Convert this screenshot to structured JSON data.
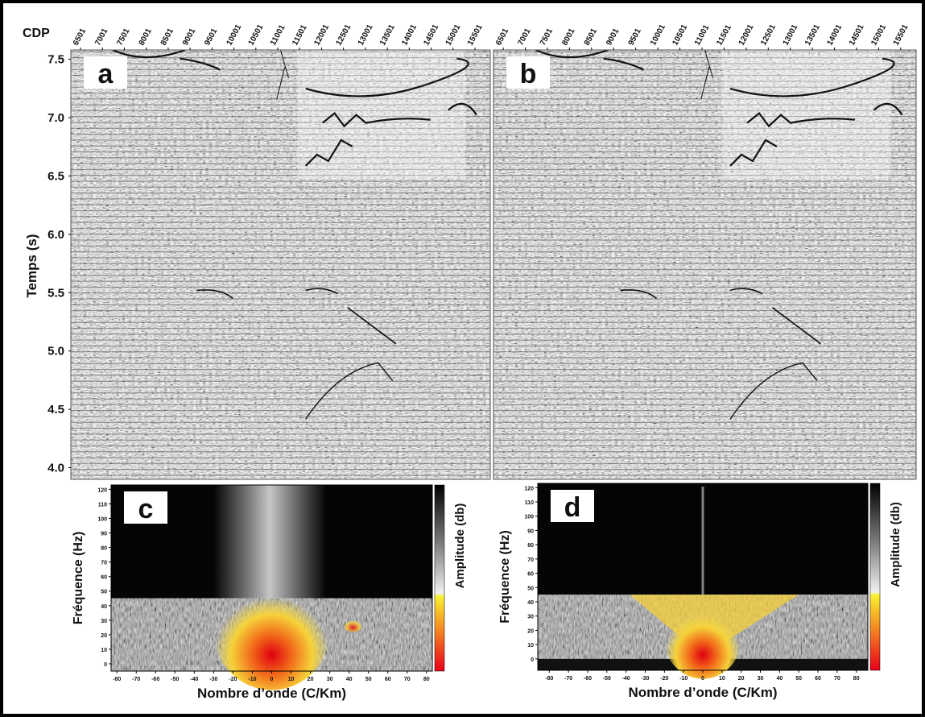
{
  "chart_data": [
    {
      "type": "seismic",
      "panel_label": "a",
      "xlabel": "CDP",
      "ylabel": "Temps (s)",
      "xlim": [
        6280,
        15850
      ],
      "xticks": [
        6501,
        7001,
        7501,
        8001,
        8501,
        9001,
        9501,
        10001,
        10501,
        11001,
        11501,
        12001,
        12501,
        13001,
        13501,
        14001,
        14501,
        15001,
        15501
      ],
      "ylim": [
        3.9,
        7.58
      ],
      "yticks": [
        {
          "value": 4,
          "label": "4.0"
        },
        4.5,
        {
          "value": 5,
          "label": "5.0"
        },
        5.5,
        {
          "value": 6,
          "label": "6.0"
        },
        6.5,
        {
          "value": 7,
          "label": "7.0"
        },
        7.5
      ]
    },
    {
      "type": "seismic",
      "panel_label": "b",
      "xlim": [
        6280,
        15850
      ],
      "xticks": [
        6501,
        7001,
        7501,
        8001,
        8501,
        9001,
        9501,
        10001,
        10501,
        11001,
        11501,
        12001,
        12501,
        13001,
        13501,
        14001,
        14501,
        15001,
        15501
      ],
      "ylim": [
        3.9,
        7.58
      ]
    },
    {
      "type": "spectrum",
      "panel_label": "c",
      "xlabel": "Nombre d’onde (C/Km)",
      "ylabel": "Fréquence (Hz)",
      "colorbar_label": "Amplitude (db)",
      "xlim": [
        -83,
        83
      ],
      "xticks": [
        -80,
        -70,
        -60,
        -50,
        -40,
        -30,
        -20,
        -10,
        0,
        10,
        20,
        30,
        40,
        50,
        60,
        70,
        80
      ],
      "ylim": [
        -5,
        123
      ],
      "yticks": [
        0,
        10,
        20,
        30,
        40,
        50,
        60,
        70,
        80,
        90,
        100,
        110,
        120
      ]
    },
    {
      "type": "spectrum",
      "panel_label": "d",
      "xlabel": "Nombre d’onde (C/Km)",
      "ylabel": "Fréquence (Hz)",
      "colorbar_label": "Amplitude (db)",
      "xlim": [
        -86,
        86
      ],
      "xticks": [
        -80,
        -70,
        -60,
        -50,
        -40,
        -30,
        -20,
        -10,
        0,
        10,
        20,
        30,
        40,
        50,
        60,
        70,
        80
      ],
      "ylim": [
        -8,
        123
      ],
      "yticks": [
        0,
        10,
        20,
        30,
        40,
        50,
        60,
        70,
        80,
        90,
        100,
        110,
        120
      ]
    }
  ]
}
